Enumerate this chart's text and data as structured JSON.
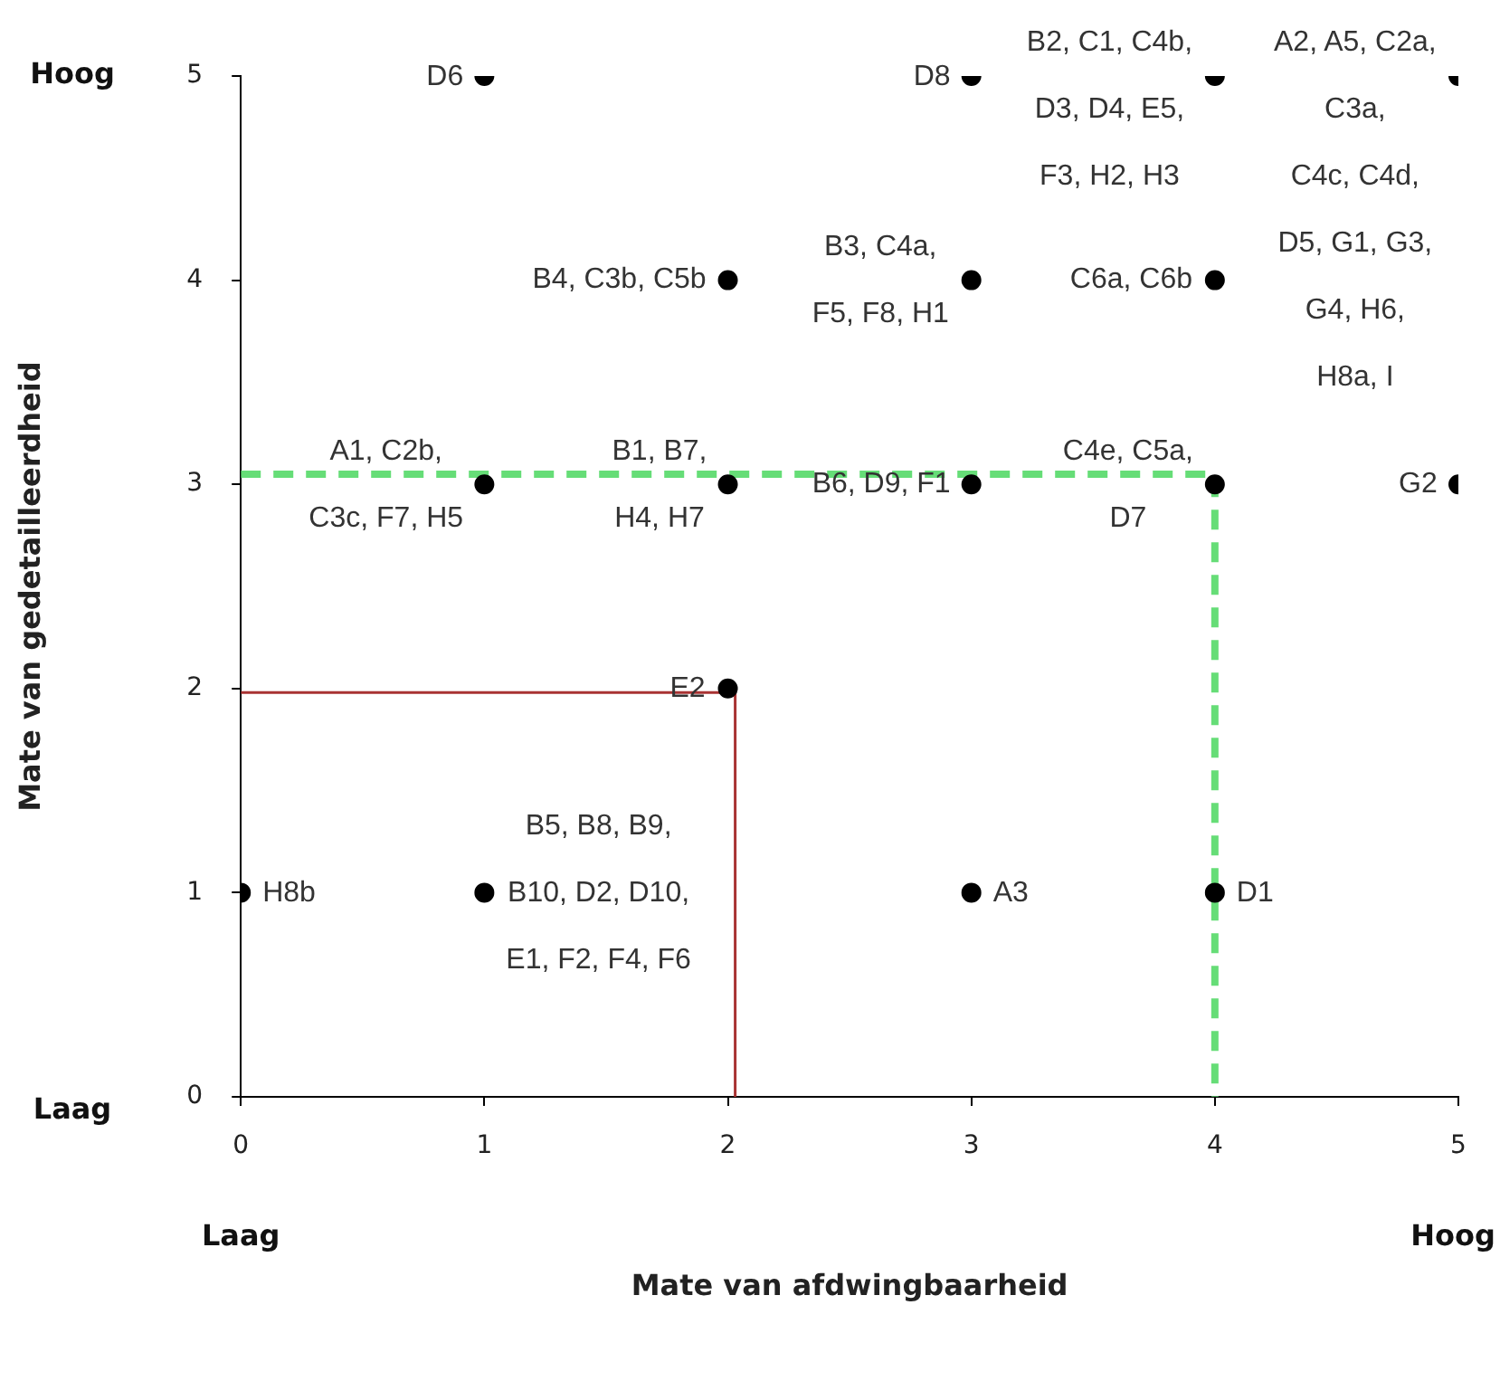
{
  "chart_data": {
    "type": "scatter",
    "xlabel": "Mate van afdwingbaarheid",
    "ylabel": "Mate van gedetailleerdheid",
    "xlim": [
      0,
      5
    ],
    "ylim": [
      0,
      5
    ],
    "xticks": [
      0,
      1,
      2,
      3,
      4,
      5
    ],
    "yticks": [
      0,
      1,
      2,
      3,
      4,
      5
    ],
    "grid": false,
    "legend": false,
    "series": [
      {
        "marker": "circle",
        "color": "#000000",
        "x": [
          0,
          1,
          1,
          1,
          2,
          2,
          2,
          3,
          3,
          3,
          3,
          4,
          4,
          4,
          4,
          5,
          5
        ],
        "values": [
          1,
          5,
          3,
          1,
          4,
          3,
          2,
          5,
          4,
          3,
          1,
          5,
          4,
          3,
          1,
          5,
          3
        ]
      },
      {
        "type": "line",
        "color": "#a83232",
        "line_style": "solid",
        "x": [
          0,
          2.03,
          2.03
        ],
        "values": [
          1.98,
          1.98,
          0
        ]
      },
      {
        "type": "line",
        "color": "#66dd77",
        "line_style": "dashed",
        "x": [
          0,
          4,
          4
        ],
        "values": [
          3.05,
          3.05,
          0
        ]
      }
    ],
    "annotations": [
      "Hoog",
      "Laag",
      "Laag",
      "Hoog",
      {
        "text": "H8b",
        "x": 0,
        "y": 1
      },
      {
        "text": "D6",
        "x": 1,
        "y": 5
      },
      {
        "text": "A1, C2b,",
        "x": 1,
        "y": 3
      },
      {
        "text": "C3c, F7, H5",
        "x": 1,
        "y": 3
      },
      {
        "text": "B5, B8, B9,",
        "x": 1,
        "y": 1
      },
      {
        "text": "B10, D2, D10,",
        "x": 1,
        "y": 1
      },
      {
        "text": "E1, F2, F4, F6",
        "x": 1,
        "y": 1
      },
      {
        "text": "B4, C3b, C5b",
        "x": 2,
        "y": 4
      },
      {
        "text": "B1, B7,",
        "x": 2,
        "y": 3
      },
      {
        "text": "H4, H7",
        "x": 2,
        "y": 3
      },
      {
        "text": "E2",
        "x": 2,
        "y": 2
      },
      {
        "text": "D8",
        "x": 3,
        "y": 5
      },
      {
        "text": "B3, C4a,",
        "x": 3,
        "y": 4
      },
      {
        "text": "F5, F8, H1",
        "x": 3,
        "y": 4
      },
      {
        "text": "B6, D9, F1",
        "x": 3,
        "y": 3
      },
      {
        "text": "A3",
        "x": 3,
        "y": 1
      },
      {
        "text": "B2, C1, C4b,",
        "x": 4,
        "y": 5
      },
      {
        "text": "D3, D4, E5,",
        "x": 4,
        "y": 5
      },
      "F3, H2, H3",
      {
        "text": "C6a, C6b",
        "x": 4,
        "y": 4
      },
      {
        "text": "C4e, C5a,",
        "x": 4,
        "y": 3
      },
      {
        "text": "D7",
        "x": 4,
        "y": 3
      },
      {
        "text": "D1",
        "x": 4,
        "y": 1
      },
      {
        "text": "A2, A5, C2a,",
        "x": 5,
        "y": 5
      },
      {
        "text": "C3a,",
        "x": 5,
        "y": 5
      },
      "C4c, C4d,",
      "D5, G1, G3,",
      "G4, H6,",
      "H8a, I",
      {
        "text": "G2",
        "x": 5,
        "y": 3
      }
    ]
  }
}
